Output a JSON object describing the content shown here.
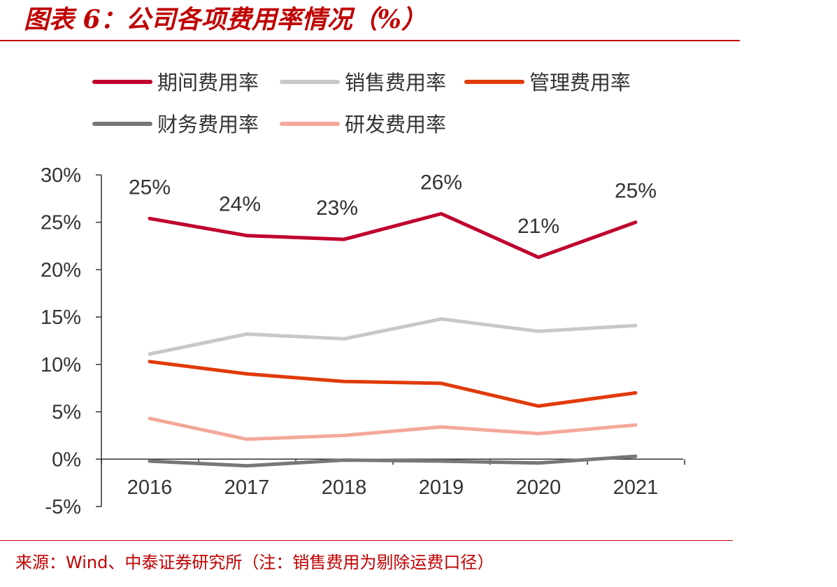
{
  "title": "图表 6：公司各项费用率情况（%）",
  "source": "来源：Wind、中泰证券研究所（注：销售费用为剔除运费口径）",
  "colors": {
    "title": "#c00000",
    "axis": "#333333"
  },
  "chart_data": {
    "type": "line",
    "title": "",
    "xlabel": "",
    "ylabel": "",
    "categories": [
      "2016",
      "2017",
      "2018",
      "2019",
      "2020",
      "2021"
    ],
    "ylim": [
      -5,
      30
    ],
    "yticks": [
      "30%",
      "25%",
      "20%",
      "15%",
      "10%",
      "5%",
      "0%",
      "-5%"
    ],
    "ytick_values": [
      30,
      25,
      20,
      15,
      10,
      5,
      0,
      -5
    ],
    "grid": false,
    "legend_position": "top",
    "series": [
      {
        "name": "期间费用率",
        "color": "#c0002e",
        "values": [
          25.4,
          23.6,
          23.2,
          25.9,
          21.3,
          25.0
        ],
        "data_labels": [
          "25%",
          "24%",
          "23%",
          "26%",
          "21%",
          "25%"
        ]
      },
      {
        "name": "销售费用率",
        "color": "#c8c8c8",
        "values": [
          11.1,
          13.2,
          12.7,
          14.8,
          13.5,
          14.1
        ]
      },
      {
        "name": "管理费用率",
        "color": "#e03a0a",
        "values": [
          10.3,
          9.0,
          8.2,
          8.0,
          5.6,
          7.0
        ]
      },
      {
        "name": "财务费用率",
        "color": "#777777",
        "values": [
          -0.2,
          -0.7,
          -0.1,
          -0.2,
          -0.4,
          0.3
        ]
      },
      {
        "name": "研发费用率",
        "color": "#f4a89a",
        "values": [
          4.3,
          2.1,
          2.5,
          3.4,
          2.7,
          3.6
        ]
      }
    ]
  }
}
